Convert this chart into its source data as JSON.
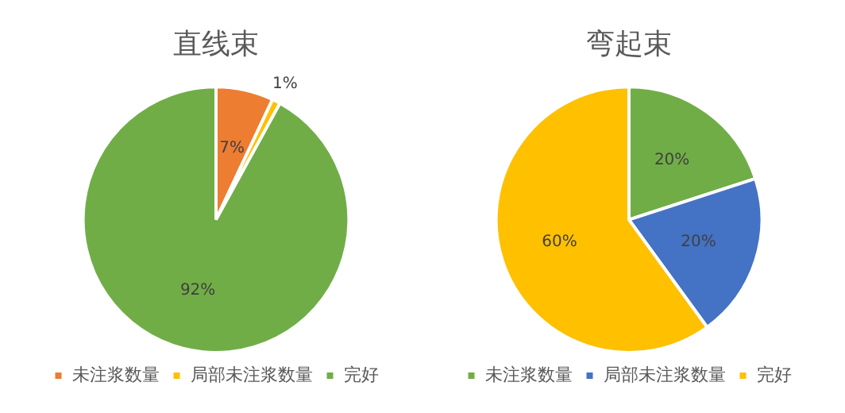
{
  "chart_data": [
    {
      "type": "pie",
      "title": "直线束",
      "categories": [
        "未注浆数量",
        "局部未注浆数量",
        "完好"
      ],
      "values": [
        7,
        1,
        92
      ],
      "colors": [
        "#ed7d31",
        "#ffc000",
        "#70ad47"
      ],
      "value_labels": [
        "7%",
        "1%",
        "92%"
      ],
      "legend": "bottom"
    },
    {
      "type": "pie",
      "title": "弯起束",
      "categories": [
        "未注浆数量",
        "局部未注浆数量",
        "完好"
      ],
      "values": [
        20,
        20,
        60
      ],
      "colors": [
        "#70ad47",
        "#4472c4",
        "#ffc000"
      ],
      "value_labels": [
        "20%",
        "20%",
        "60%"
      ],
      "legend": "bottom"
    }
  ]
}
